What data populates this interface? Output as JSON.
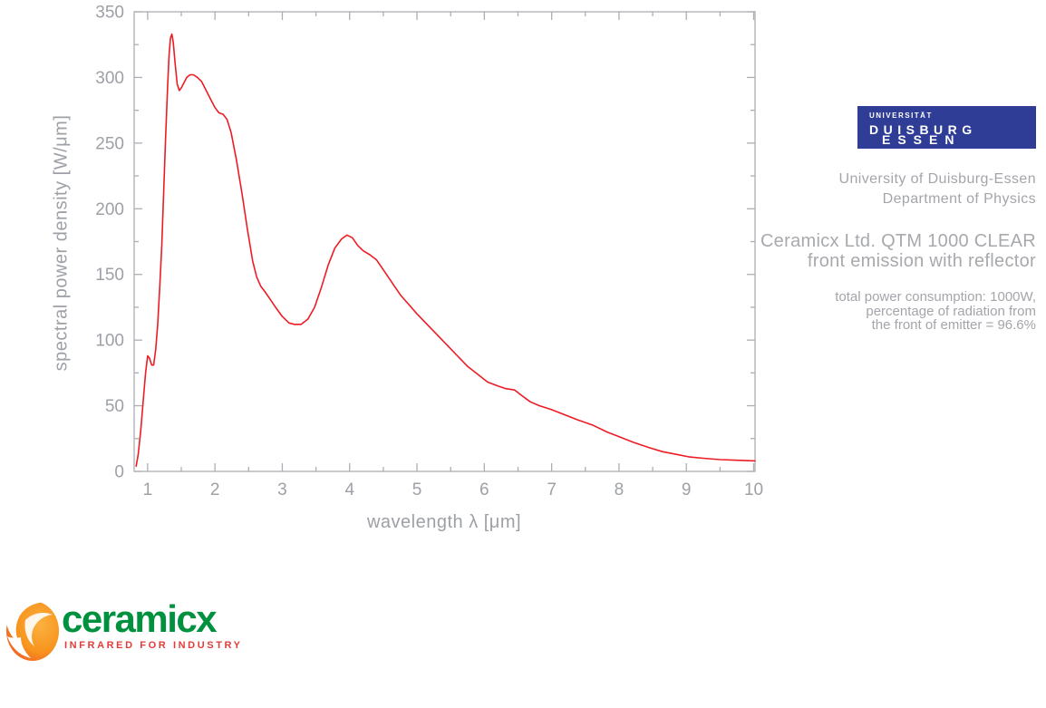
{
  "chart_data": {
    "type": "line",
    "title": "",
    "xlabel": "wavelength λ [μm]",
    "ylabel": "spectral power density [W/μm]",
    "xlim": [
      0.8,
      10.02
    ],
    "ylim": [
      0,
      350
    ],
    "x_ticks": [
      1,
      2,
      3,
      4,
      5,
      6,
      7,
      8,
      9,
      10
    ],
    "x_minor_ticks": [
      1.5,
      2.5,
      3.5,
      4.5,
      5.5,
      6.5,
      7.5,
      8.5,
      9.5
    ],
    "y_ticks": [
      0,
      50,
      100,
      150,
      200,
      250,
      300,
      350
    ],
    "y_minor_ticks": [
      25,
      75,
      125,
      175,
      225,
      275,
      325
    ],
    "grid": false,
    "axis_color": "#abaeb4",
    "tick_label_color": "#9da0a6",
    "series": [
      {
        "name": "spectral power density",
        "color": "#ed1c24",
        "points": [
          [
            0.83,
            4
          ],
          [
            0.86,
            13
          ],
          [
            0.9,
            32
          ],
          [
            0.94,
            57
          ],
          [
            0.97,
            75
          ],
          [
            1.0,
            88
          ],
          [
            1.03,
            86
          ],
          [
            1.06,
            81
          ],
          [
            1.09,
            81
          ],
          [
            1.12,
            93
          ],
          [
            1.15,
            112
          ],
          [
            1.18,
            140
          ],
          [
            1.21,
            172
          ],
          [
            1.24,
            215
          ],
          [
            1.27,
            258
          ],
          [
            1.3,
            296
          ],
          [
            1.32,
            318
          ],
          [
            1.34,
            330
          ],
          [
            1.36,
            333
          ],
          [
            1.38,
            327
          ],
          [
            1.41,
            310
          ],
          [
            1.44,
            295
          ],
          [
            1.47,
            290
          ],
          [
            1.5,
            292
          ],
          [
            1.54,
            296
          ],
          [
            1.58,
            300
          ],
          [
            1.63,
            302
          ],
          [
            1.68,
            302
          ],
          [
            1.74,
            300
          ],
          [
            1.8,
            297
          ],
          [
            1.87,
            290
          ],
          [
            1.94,
            283
          ],
          [
            2.0,
            277
          ],
          [
            2.06,
            273
          ],
          [
            2.12,
            272
          ],
          [
            2.18,
            268
          ],
          [
            2.24,
            258
          ],
          [
            2.32,
            237
          ],
          [
            2.4,
            212
          ],
          [
            2.48,
            185
          ],
          [
            2.56,
            160
          ],
          [
            2.62,
            148
          ],
          [
            2.68,
            141
          ],
          [
            2.74,
            137
          ],
          [
            2.82,
            131
          ],
          [
            2.9,
            125
          ],
          [
            3.0,
            118
          ],
          [
            3.1,
            113
          ],
          [
            3.18,
            112
          ],
          [
            3.28,
            112
          ],
          [
            3.38,
            116
          ],
          [
            3.48,
            125
          ],
          [
            3.58,
            140
          ],
          [
            3.68,
            157
          ],
          [
            3.78,
            170
          ],
          [
            3.88,
            177
          ],
          [
            3.96,
            180
          ],
          [
            4.04,
            178
          ],
          [
            4.12,
            172
          ],
          [
            4.2,
            168
          ],
          [
            4.3,
            165
          ],
          [
            4.4,
            161
          ],
          [
            4.52,
            152
          ],
          [
            4.64,
            143
          ],
          [
            4.76,
            134
          ],
          [
            4.88,
            127
          ],
          [
            5.0,
            120
          ],
          [
            5.15,
            112
          ],
          [
            5.3,
            104
          ],
          [
            5.45,
            96
          ],
          [
            5.6,
            88
          ],
          [
            5.75,
            80
          ],
          [
            5.9,
            74
          ],
          [
            6.05,
            68
          ],
          [
            6.2,
            65
          ],
          [
            6.32,
            63
          ],
          [
            6.45,
            62
          ],
          [
            6.55,
            58
          ],
          [
            6.68,
            53
          ],
          [
            6.82,
            50
          ],
          [
            7.0,
            47
          ],
          [
            7.2,
            43
          ],
          [
            7.4,
            39
          ],
          [
            7.62,
            35
          ],
          [
            7.82,
            30
          ],
          [
            8.02,
            26
          ],
          [
            8.22,
            22
          ],
          [
            8.45,
            18
          ],
          [
            8.65,
            15
          ],
          [
            8.85,
            13
          ],
          [
            9.05,
            11
          ],
          [
            9.25,
            10
          ],
          [
            9.5,
            9
          ],
          [
            9.75,
            8.5
          ],
          [
            10.02,
            8
          ]
        ]
      }
    ]
  },
  "ude_logo": {
    "line1": "UNIVERSITÄT",
    "line2": "DUISBURG",
    "line3": "ESSEN",
    "bg_color": "#2f3d97"
  },
  "affiliation": {
    "line1": "University of Duisburg-Essen",
    "line2": "Department of Physics"
  },
  "title_block": {
    "line1": "Ceramicx Ltd. QTM 1000 CLEAR",
    "line2": "front emission with reflector"
  },
  "details_block": {
    "line1": "total power consumption: 1000W,",
    "line2": "percentage of radiation from",
    "line3": "the front of emitter = 96.6%"
  },
  "ceramicx_logo": {
    "name": "ceramicx",
    "tagline": "INFRARED FOR INDUSTRY",
    "green": "#00913e",
    "red": "#e23c3a",
    "orange_outer": "#f7941e",
    "orange_inner": "#fbb03f"
  }
}
